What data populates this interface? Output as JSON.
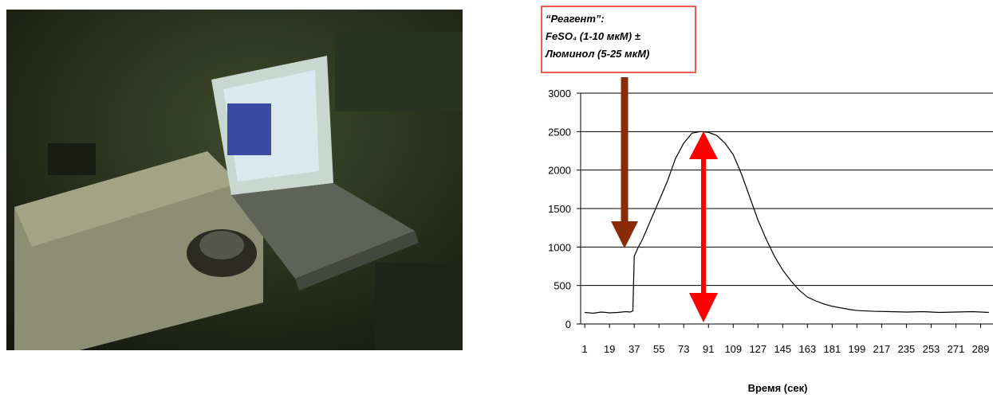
{
  "chart_data": {
    "type": "line",
    "annotation": [
      "“Реагент”:",
      "FeSO₄ (1-10 мкМ) ±",
      "Люминол (5-25 мкМ)"
    ],
    "x_label": "Время (сек)",
    "x": [
      1,
      7,
      13,
      19,
      25,
      31,
      34,
      36,
      37,
      40,
      43,
      49,
      55,
      61,
      67,
      73,
      79,
      85,
      91,
      97,
      103,
      109,
      115,
      121,
      127,
      133,
      139,
      145,
      151,
      157,
      163,
      169,
      175,
      181,
      187,
      193,
      199,
      211,
      223,
      235,
      247,
      259,
      271,
      283,
      295
    ],
    "series": [
      {
        "color": "#000000",
        "values": [
          150,
          140,
          155,
          145,
          150,
          160,
          155,
          170,
          880,
          1000,
          1100,
          1350,
          1600,
          1850,
          2150,
          2350,
          2480,
          2500,
          2490,
          2450,
          2350,
          2200,
          1950,
          1650,
          1350,
          1100,
          880,
          700,
          560,
          440,
          350,
          300,
          260,
          230,
          210,
          190,
          175,
          165,
          160,
          155,
          160,
          150,
          155,
          160,
          150
        ]
      }
    ],
    "xlim": [
      -2,
      298
    ],
    "xticks": [
      1,
      19,
      37,
      55,
      73,
      91,
      109,
      127,
      145,
      163,
      181,
      199,
      217,
      235,
      253,
      271,
      289
    ],
    "ylim": [
      0,
      3000
    ],
    "yticks": [
      0,
      500,
      1000,
      1500,
      2000,
      2500,
      3000
    ],
    "grid": true
  }
}
